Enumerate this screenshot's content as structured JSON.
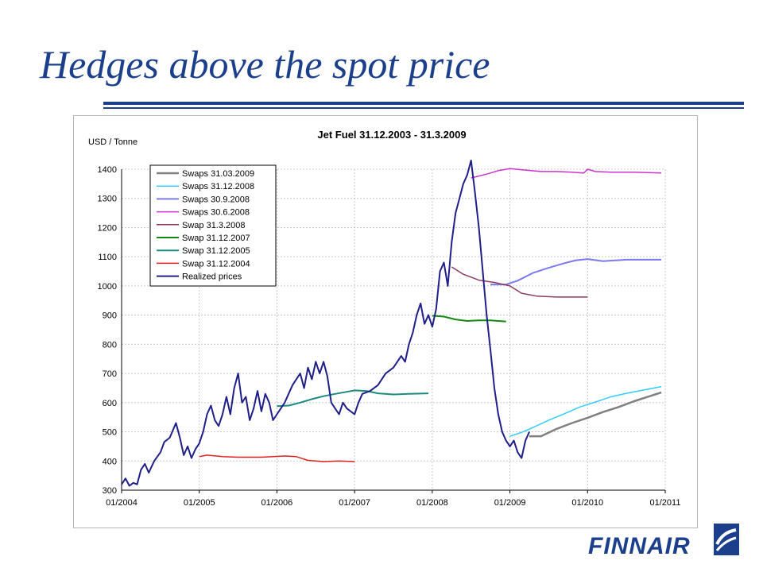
{
  "slide": {
    "title": "Hedges above the spot price"
  },
  "logo": {
    "text": "FINNAIR",
    "icon": "finnair-logo-mark",
    "color": "#1c3f8c"
  },
  "chart_data": {
    "type": "line",
    "title": "Jet Fuel 31.12.2003 - 31.3.2009",
    "ylabel": "USD / Tonne",
    "xlabel": "",
    "ylim": [
      300,
      1400
    ],
    "yticks": [
      300,
      400,
      500,
      600,
      700,
      800,
      900,
      1000,
      1100,
      1200,
      1300,
      1400
    ],
    "xlim": [
      2004.0,
      2011.0
    ],
    "xticks": [
      "01/2004",
      "01/2005",
      "01/2006",
      "01/2007",
      "01/2008",
      "01/2009",
      "01/2010",
      "01/2011"
    ],
    "grid": true,
    "legend": "top-left",
    "series": [
      {
        "name": "Swaps 31.03.2009",
        "color": "#808080",
        "width": 2.5,
        "x": [
          2009.25,
          2009.4,
          2009.6,
          2009.8,
          2010.0,
          2010.2,
          2010.4,
          2010.6,
          2010.8,
          2010.95
        ],
        "y": [
          485,
          485,
          510,
          530,
          548,
          568,
          585,
          605,
          622,
          635
        ]
      },
      {
        "name": "Swaps 31.12.2008",
        "color": "#33ccff",
        "width": 1.5,
        "x": [
          2009.0,
          2009.15,
          2009.3,
          2009.5,
          2009.7,
          2009.9,
          2010.1,
          2010.3,
          2010.5,
          2010.7,
          2010.95
        ],
        "y": [
          485,
          498,
          515,
          540,
          562,
          585,
          602,
          620,
          632,
          642,
          655
        ]
      },
      {
        "name": "Swaps 30.9.2008",
        "color": "#7a7aee",
        "width": 2,
        "x": [
          2008.75,
          2008.95,
          2009.1,
          2009.3,
          2009.5,
          2009.7,
          2009.85,
          2010.0,
          2010.2,
          2010.5,
          2010.95
        ],
        "y": [
          1005,
          1005,
          1018,
          1045,
          1062,
          1078,
          1088,
          1092,
          1085,
          1090,
          1090
        ]
      },
      {
        "name": "Swaps 30.6.2008",
        "color": "#cc33cc",
        "width": 1.5,
        "x": [
          2008.5,
          2008.7,
          2008.85,
          2009.0,
          2009.2,
          2009.4,
          2009.6,
          2009.8,
          2009.95,
          2010.0,
          2010.1,
          2010.3,
          2010.6,
          2010.95
        ],
        "y": [
          1370,
          1383,
          1395,
          1402,
          1397,
          1392,
          1392,
          1390,
          1387,
          1400,
          1392,
          1390,
          1390,
          1387
        ]
      },
      {
        "name": "Swap 31.3.2008",
        "color": "#8b3a62",
        "width": 1.5,
        "x": [
          2008.25,
          2008.4,
          2008.6,
          2008.8,
          2009.0,
          2009.15,
          2009.35,
          2009.6,
          2009.8,
          2010.0
        ],
        "y": [
          1065,
          1040,
          1020,
          1012,
          1000,
          975,
          965,
          962,
          962,
          962
        ]
      },
      {
        "name": "Swap 31.12.2007",
        "color": "#128a12",
        "width": 2,
        "x": [
          2008.0,
          2008.15,
          2008.3,
          2008.45,
          2008.6,
          2008.75,
          2008.85,
          2008.95
        ],
        "y": [
          898,
          895,
          885,
          880,
          882,
          882,
          880,
          878
        ]
      },
      {
        "name": "Swap 31.12.2005",
        "color": "#1b8a80",
        "width": 2,
        "x": [
          2006.0,
          2006.15,
          2006.3,
          2006.45,
          2006.6,
          2006.75,
          2006.9,
          2007.0,
          2007.15,
          2007.3,
          2007.5,
          2007.7,
          2007.95
        ],
        "y": [
          588,
          590,
          600,
          612,
          622,
          630,
          637,
          642,
          640,
          632,
          628,
          630,
          632
        ]
      },
      {
        "name": "Swap 31.12.2004",
        "color": "#e02020",
        "width": 1.5,
        "x": [
          2005.0,
          2005.1,
          2005.3,
          2005.5,
          2005.8,
          2006.1,
          2006.25,
          2006.4,
          2006.6,
          2006.8,
          2007.0
        ],
        "y": [
          415,
          420,
          415,
          413,
          413,
          417,
          415,
          402,
          398,
          400,
          398
        ]
      },
      {
        "name": "Realized prices",
        "color": "#1f1f8a",
        "width": 2,
        "x": [
          2004.0,
          2004.05,
          2004.1,
          2004.15,
          2004.2,
          2004.25,
          2004.3,
          2004.35,
          2004.42,
          2004.5,
          2004.55,
          2004.62,
          2004.7,
          2004.75,
          2004.8,
          2004.85,
          2004.9,
          2004.95,
          2005.0,
          2005.05,
          2005.1,
          2005.15,
          2005.2,
          2005.25,
          2005.3,
          2005.35,
          2005.4,
          2005.45,
          2005.5,
          2005.55,
          2005.6,
          2005.65,
          2005.7,
          2005.75,
          2005.8,
          2005.85,
          2005.9,
          2005.95,
          2006.0,
          2006.05,
          2006.1,
          2006.2,
          2006.3,
          2006.35,
          2006.4,
          2006.45,
          2006.5,
          2006.55,
          2006.6,
          2006.65,
          2006.7,
          2006.75,
          2006.8,
          2006.85,
          2006.9,
          2006.95,
          2007.0,
          2007.05,
          2007.1,
          2007.2,
          2007.3,
          2007.4,
          2007.5,
          2007.6,
          2007.65,
          2007.7,
          2007.75,
          2007.8,
          2007.85,
          2007.9,
          2007.95,
          2008.0,
          2008.05,
          2008.1,
          2008.15,
          2008.2,
          2008.25,
          2008.3,
          2008.35,
          2008.4,
          2008.45,
          2008.5,
          2008.55,
          2008.6,
          2008.65,
          2008.7,
          2008.75,
          2008.8,
          2008.85,
          2008.9,
          2008.95,
          2009.0,
          2009.05,
          2009.1,
          2009.15,
          2009.2,
          2009.25
        ],
        "y": [
          320,
          340,
          315,
          325,
          320,
          370,
          390,
          360,
          400,
          430,
          465,
          480,
          530,
          480,
          420,
          450,
          410,
          440,
          460,
          500,
          560,
          590,
          540,
          520,
          560,
          620,
          560,
          650,
          700,
          600,
          620,
          540,
          580,
          640,
          570,
          630,
          600,
          540,
          560,
          580,
          600,
          660,
          700,
          650,
          720,
          680,
          740,
          700,
          740,
          690,
          600,
          580,
          560,
          600,
          580,
          570,
          560,
          600,
          630,
          640,
          660,
          700,
          720,
          760,
          740,
          800,
          840,
          900,
          940,
          870,
          900,
          860,
          920,
          1050,
          1080,
          1000,
          1150,
          1250,
          1300,
          1350,
          1380,
          1430,
          1320,
          1200,
          1050,
          900,
          780,
          650,
          560,
          500,
          470,
          450,
          470,
          430,
          410,
          470,
          500
        ]
      }
    ]
  }
}
